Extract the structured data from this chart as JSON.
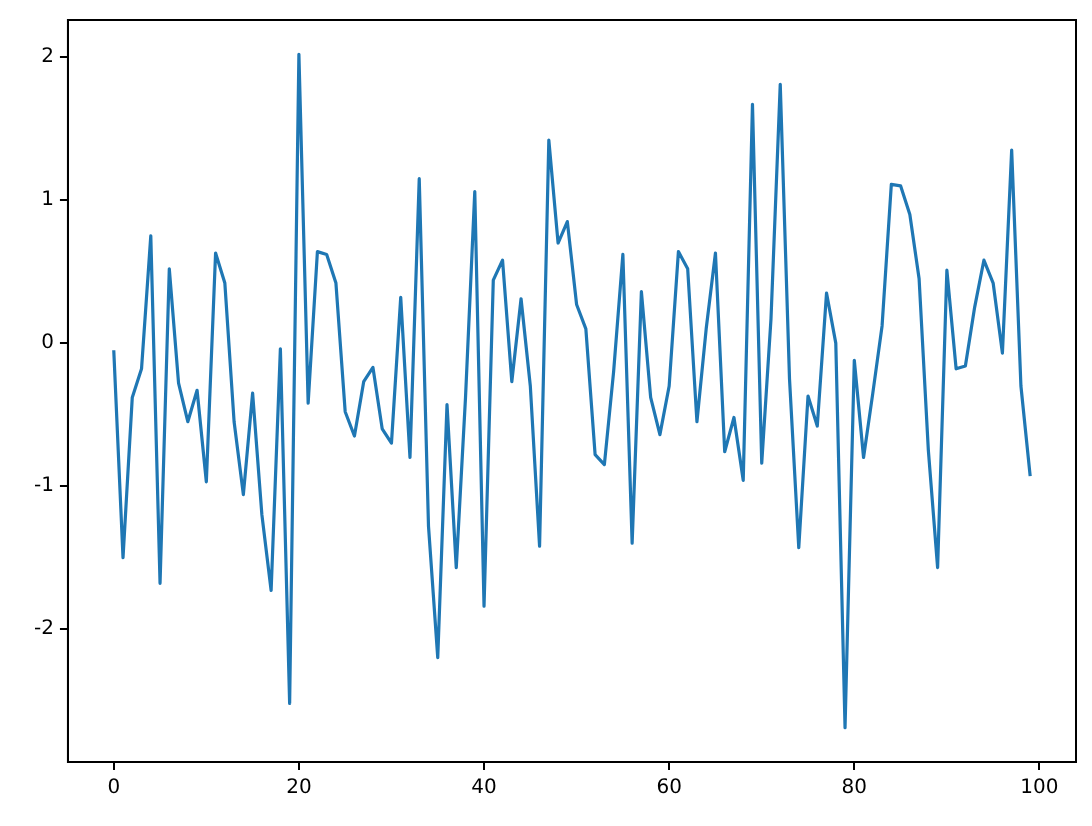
{
  "chart_data": {
    "type": "line",
    "x": [
      0,
      1,
      2,
      3,
      4,
      5,
      6,
      7,
      8,
      9,
      10,
      11,
      12,
      13,
      14,
      15,
      16,
      17,
      18,
      19,
      20,
      21,
      22,
      23,
      24,
      25,
      26,
      27,
      28,
      29,
      30,
      31,
      32,
      33,
      34,
      35,
      36,
      37,
      38,
      39,
      40,
      41,
      42,
      43,
      44,
      45,
      46,
      47,
      48,
      49,
      50,
      51,
      52,
      53,
      54,
      55,
      56,
      57,
      58,
      59,
      60,
      61,
      62,
      63,
      64,
      65,
      66,
      67,
      68,
      69,
      70,
      71,
      72,
      73,
      74,
      75,
      76,
      77,
      78,
      79,
      80,
      81,
      82,
      83,
      84,
      85,
      86,
      87,
      88,
      89,
      90,
      91,
      92,
      93,
      94,
      95,
      96,
      97,
      98,
      99
    ],
    "series": [
      {
        "color": "#1f77b4",
        "values": [
          -0.05,
          -1.5,
          -0.38,
          -0.18,
          0.75,
          -1.68,
          0.52,
          -0.28,
          -0.55,
          -0.33,
          -0.97,
          0.63,
          0.42,
          -0.55,
          -1.06,
          -0.35,
          -1.2,
          -1.73,
          -0.04,
          -2.52,
          2.02,
          -0.42,
          0.64,
          0.62,
          0.42,
          -0.48,
          -0.65,
          -0.27,
          -0.17,
          -0.6,
          -0.7,
          0.32,
          -0.8,
          1.15,
          -1.28,
          -2.2,
          -0.43,
          -1.57,
          -0.38,
          1.06,
          -1.84,
          0.44,
          0.58,
          -0.27,
          0.31,
          -0.3,
          -1.42,
          1.42,
          0.7,
          0.85,
          0.27,
          0.1,
          -0.78,
          -0.85,
          -0.2,
          0.62,
          -1.4,
          0.36,
          -0.38,
          -0.64,
          -0.3,
          0.64,
          0.52,
          -0.55,
          0.1,
          0.63,
          -0.76,
          -0.52,
          -0.96,
          1.67,
          -0.84,
          0.17,
          1.81,
          -0.25,
          -1.43,
          -0.37,
          -0.58,
          0.35,
          0.0,
          -2.69,
          -0.12,
          -0.8,
          -0.35,
          0.12,
          1.11,
          1.1,
          0.9,
          0.45,
          -0.75,
          -1.57,
          0.51,
          -0.18,
          -0.16,
          0.25,
          0.58,
          0.42,
          -0.07,
          1.35,
          -0.3,
          -0.93
        ]
      }
    ],
    "xlim": [
      -4.95,
      103.95
    ],
    "xticks": [
      0,
      20,
      40,
      60,
      80,
      100
    ],
    "ylim": [
      -2.93,
      2.26
    ],
    "yticks": [
      -2,
      -1,
      0,
      1,
      2
    ],
    "grid": false,
    "legend": false
  }
}
